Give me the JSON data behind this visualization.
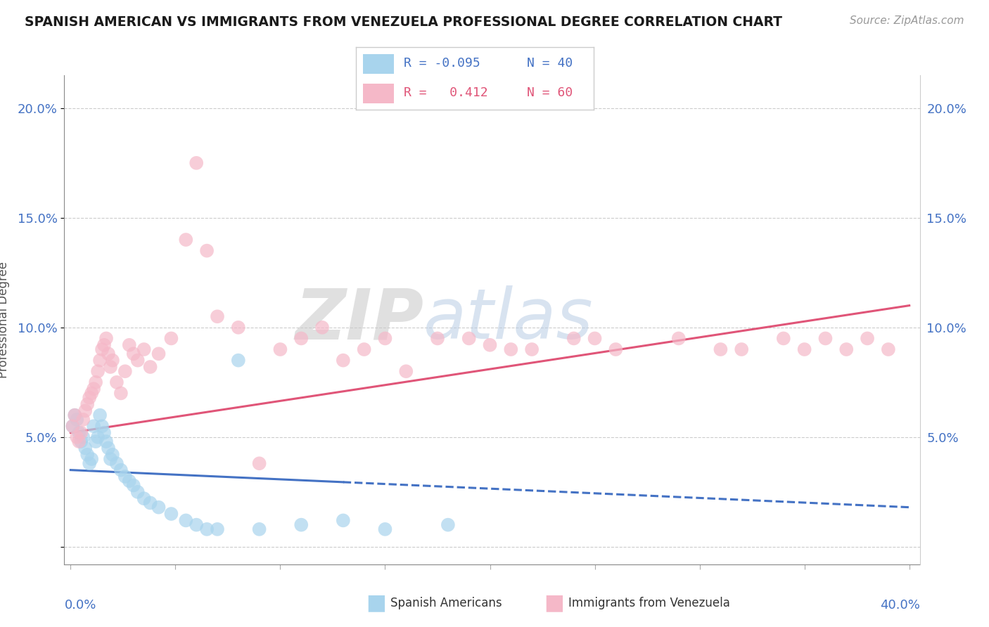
{
  "title": "SPANISH AMERICAN VS IMMIGRANTS FROM VENEZUELA PROFESSIONAL DEGREE CORRELATION CHART",
  "source": "Source: ZipAtlas.com",
  "ylabel": "Professional Degree",
  "y_ticks": [
    0.0,
    0.05,
    0.1,
    0.15,
    0.2
  ],
  "y_tick_labels": [
    "",
    "5.0%",
    "10.0%",
    "15.0%",
    "20.0%"
  ],
  "x_lim": [
    -0.003,
    0.405
  ],
  "y_lim": [
    -0.008,
    0.215
  ],
  "watermark_zip": "ZIP",
  "watermark_atlas": "atlas",
  "legend_r1_label": "R = -0.095",
  "legend_n1_label": "N = 40",
  "legend_r2_label": "R =   0.412",
  "legend_n2_label": "N = 60",
  "series1_label": "Spanish Americans",
  "series2_label": "Immigrants from Venezuela",
  "series1_dot_color": "#a8d4ed",
  "series2_dot_color": "#f5b8c8",
  "series1_line_color": "#4472c4",
  "series2_line_color": "#e05578",
  "legend_blue_color": "#4472c4",
  "legend_pink_color": "#e05578",
  "blue_trend_x0": 0.0,
  "blue_trend_y0": 0.035,
  "blue_trend_x1": 0.4,
  "blue_trend_y1": 0.018,
  "pink_trend_x0": 0.0,
  "pink_trend_y0": 0.052,
  "pink_trend_x1": 0.4,
  "pink_trend_y1": 0.11,
  "blue_x": [
    0.001,
    0.002,
    0.003,
    0.004,
    0.005,
    0.006,
    0.007,
    0.008,
    0.009,
    0.01,
    0.011,
    0.012,
    0.013,
    0.014,
    0.015,
    0.016,
    0.017,
    0.018,
    0.019,
    0.02,
    0.022,
    0.024,
    0.026,
    0.028,
    0.03,
    0.032,
    0.035,
    0.038,
    0.042,
    0.048,
    0.055,
    0.06,
    0.065,
    0.07,
    0.08,
    0.09,
    0.11,
    0.13,
    0.15,
    0.18
  ],
  "blue_y": [
    0.055,
    0.06,
    0.058,
    0.052,
    0.048,
    0.05,
    0.045,
    0.042,
    0.038,
    0.04,
    0.055,
    0.048,
    0.05,
    0.06,
    0.055,
    0.052,
    0.048,
    0.045,
    0.04,
    0.042,
    0.038,
    0.035,
    0.032,
    0.03,
    0.028,
    0.025,
    0.022,
    0.02,
    0.018,
    0.015,
    0.012,
    0.01,
    0.008,
    0.008,
    0.085,
    0.008,
    0.01,
    0.012,
    0.008,
    0.01
  ],
  "pink_x": [
    0.001,
    0.002,
    0.003,
    0.004,
    0.005,
    0.006,
    0.007,
    0.008,
    0.009,
    0.01,
    0.011,
    0.012,
    0.013,
    0.014,
    0.015,
    0.016,
    0.017,
    0.018,
    0.019,
    0.02,
    0.022,
    0.024,
    0.026,
    0.028,
    0.03,
    0.032,
    0.035,
    0.038,
    0.042,
    0.048,
    0.055,
    0.06,
    0.065,
    0.07,
    0.08,
    0.09,
    0.1,
    0.11,
    0.12,
    0.13,
    0.14,
    0.15,
    0.16,
    0.175,
    0.19,
    0.21,
    0.24,
    0.26,
    0.29,
    0.32,
    0.34,
    0.35,
    0.36,
    0.37,
    0.38,
    0.39,
    0.2,
    0.22,
    0.25,
    0.31
  ],
  "pink_y": [
    0.055,
    0.06,
    0.05,
    0.048,
    0.052,
    0.058,
    0.062,
    0.065,
    0.068,
    0.07,
    0.072,
    0.075,
    0.08,
    0.085,
    0.09,
    0.092,
    0.095,
    0.088,
    0.082,
    0.085,
    0.075,
    0.07,
    0.08,
    0.092,
    0.088,
    0.085,
    0.09,
    0.082,
    0.088,
    0.095,
    0.14,
    0.175,
    0.135,
    0.105,
    0.1,
    0.038,
    0.09,
    0.095,
    0.1,
    0.085,
    0.09,
    0.095,
    0.08,
    0.095,
    0.095,
    0.09,
    0.095,
    0.09,
    0.095,
    0.09,
    0.095,
    0.09,
    0.095,
    0.09,
    0.095,
    0.09,
    0.092,
    0.09,
    0.095,
    0.09
  ]
}
